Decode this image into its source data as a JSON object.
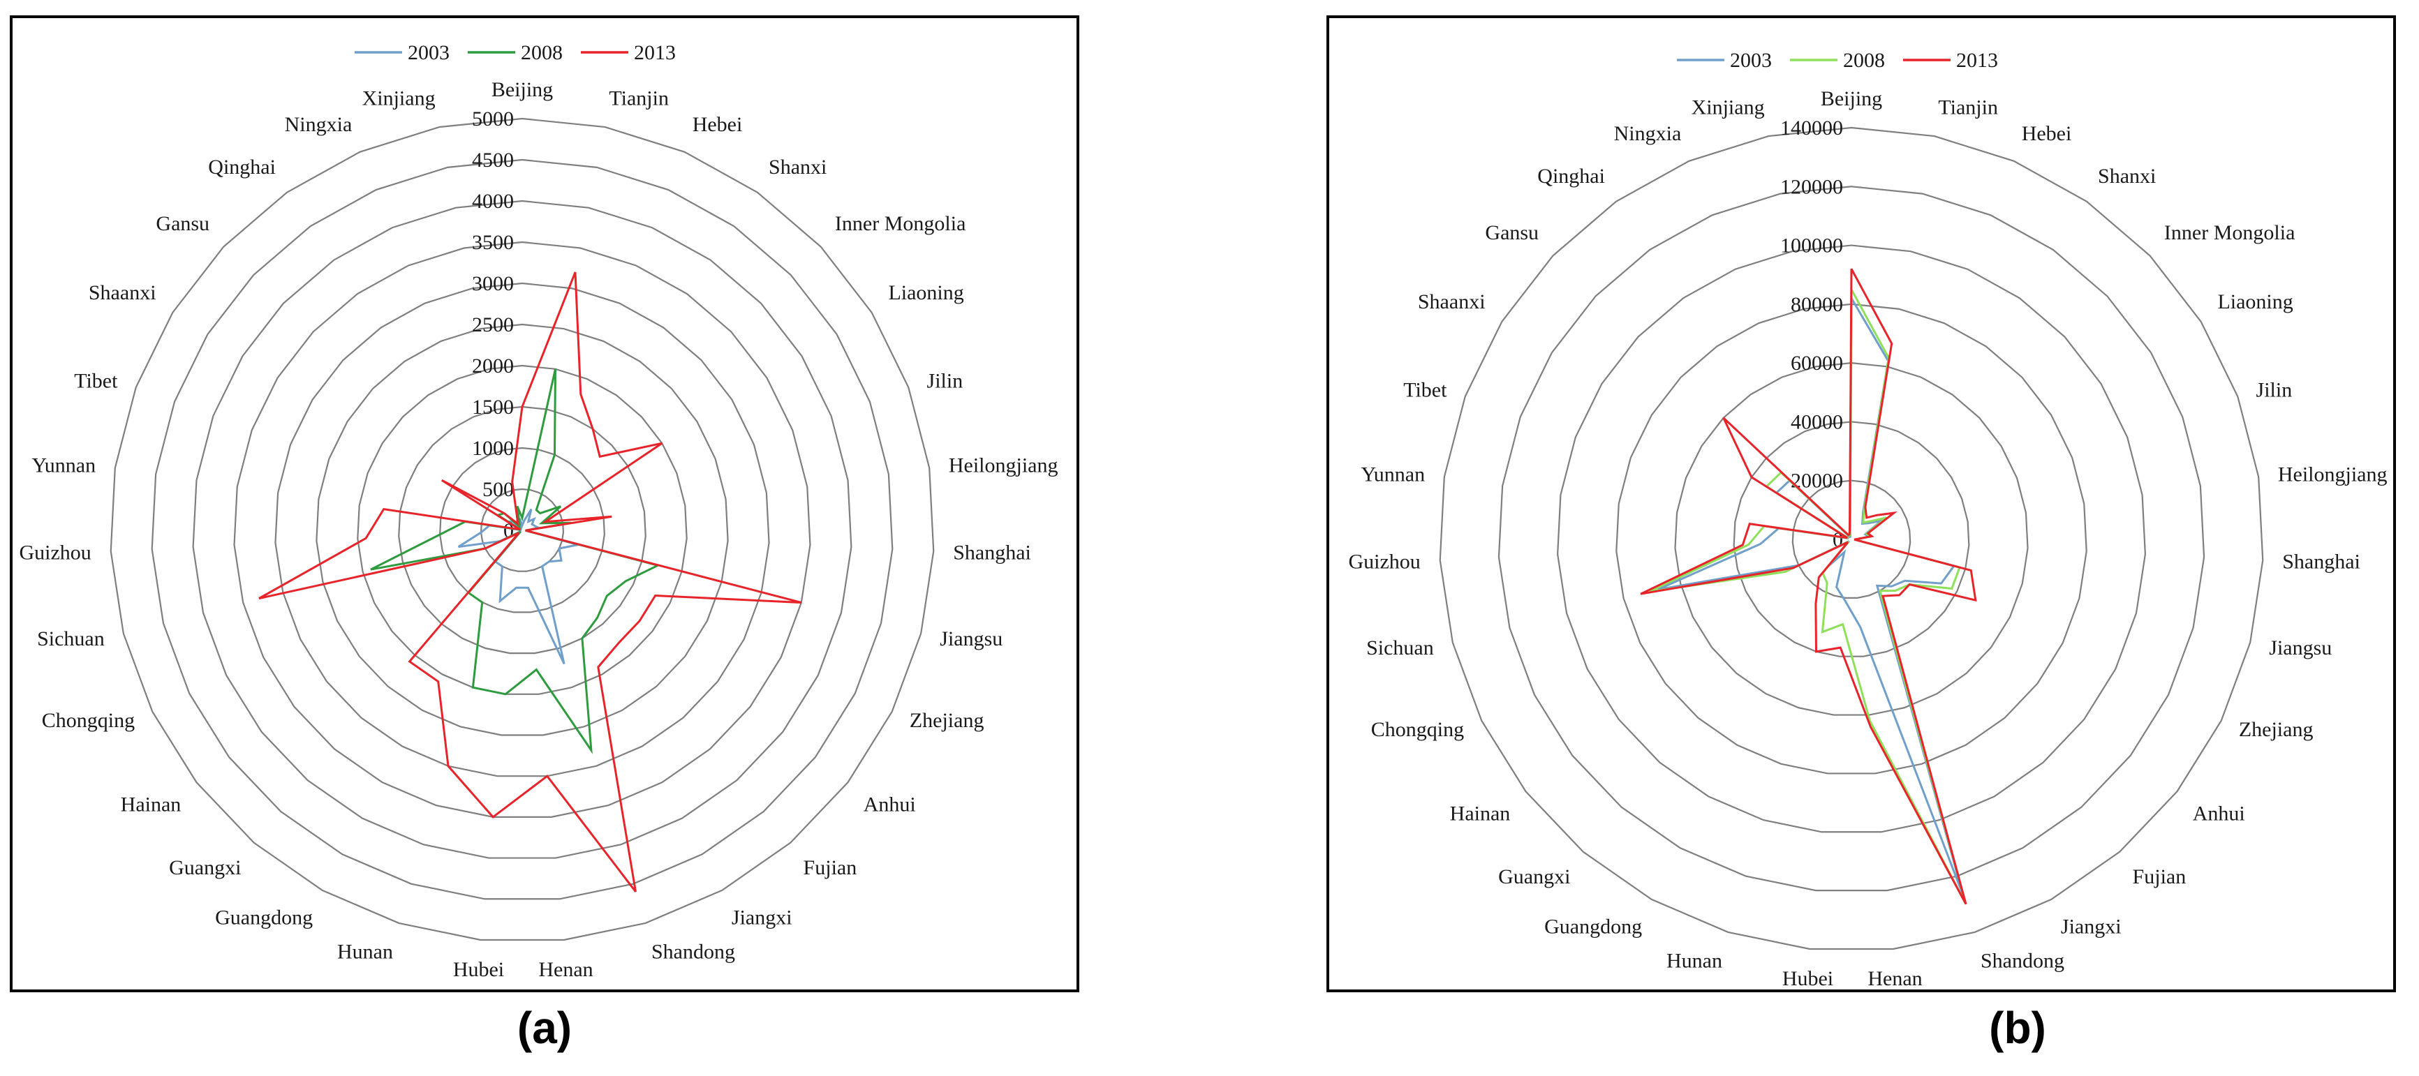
{
  "chart_data": [
    {
      "panel_label": "(a)",
      "type": "radar",
      "categories": [
        "Beijing",
        "Tianjin",
        "Hebei",
        "Shanxi",
        "Inner Mongolia",
        "Liaoning",
        "Jilin",
        "Heilongjiang",
        "Shanghai",
        "Jiangsu",
        "Zhejiang",
        "Anhui",
        "Fujian",
        "Jiangxi",
        "Shandong",
        "Henan",
        "Hubei",
        "Hunan",
        "Guangdong",
        "Guangxi",
        "Hainan",
        "Chongqing",
        "Sichuan",
        "Guizhou",
        "Yunnan",
        "Tibet",
        "Shaanxi",
        "Gansu",
        "Qinghai",
        "Ningxia",
        "Xinjiang"
      ],
      "rlim": [
        0,
        5000
      ],
      "ticks": [
        "0",
        "500",
        "1000",
        "1500",
        "2000",
        "2500",
        "3000",
        "3500",
        "4000",
        "4500",
        "5000"
      ],
      "tick_values": [
        0,
        500,
        1000,
        1500,
        2000,
        2500,
        3000,
        3500,
        4000,
        4500,
        5000
      ],
      "legend_position": "top",
      "grid": true,
      "series": [
        {
          "name": "2003",
          "color": "#6f9fca",
          "values": [
            60,
            120,
            280,
            130,
            200,
            140,
            160,
            200,
            40,
            700,
            500,
            600,
            500,
            500,
            1700,
            700,
            700,
            900,
            500,
            500,
            20,
            300,
            800,
            500,
            400,
            10,
            200,
            150,
            30,
            30,
            150
          ]
        },
        {
          "name": "2008",
          "color": "#2e9b3e",
          "values": [
            150,
            2000,
            1000,
            300,
            300,
            550,
            250,
            600,
            40,
            1700,
            1400,
            1300,
            1400,
            1500,
            2800,
            1700,
            2000,
            2000,
            1000,
            1000,
            30,
            500,
            1900,
            1000,
            700,
            20,
            350,
            300,
            60,
            80,
            300
          ]
        },
        {
          "name": "2013",
          "color": "#e8242b",
          "values": [
            1500,
            3200,
            1800,
            1500,
            1300,
            2000,
            300,
            1100,
            40,
            3500,
            1800,
            1800,
            1800,
            1900,
            4600,
            3000,
            3500,
            3000,
            2100,
            2100,
            50,
            500,
            3300,
            1900,
            1700,
            30,
            1150,
            300,
            100,
            150,
            600
          ]
        }
      ]
    },
    {
      "panel_label": "(b)",
      "type": "radar",
      "categories": [
        "Beijing",
        "Tianjin",
        "Hebei",
        "Shanxi",
        "Inner Mongolia",
        "Liaoning",
        "Jilin",
        "Heilongjiang",
        "Shanghai",
        "Jiangsu",
        "Zhejiang",
        "Anhui",
        "Fujian",
        "Jiangxi",
        "Shandong",
        "Henan",
        "Hubei",
        "Hunan",
        "Guangdong",
        "Guangxi",
        "Hainan",
        "Chongqing",
        "Sichuan",
        "Guizhou",
        "Yunnan",
        "Tibet",
        "Shaanxi",
        "Gansu",
        "Qinghai",
        "Ningxia",
        "Xinjiang"
      ],
      "rlim": [
        0,
        140000
      ],
      "ticks": [
        "0",
        "20000",
        "40000",
        "60000",
        "80000",
        "100000",
        "120000",
        "140000"
      ],
      "tick_values": [
        0,
        20000,
        40000,
        60000,
        80000,
        100000,
        120000,
        140000
      ],
      "legend_position": "top",
      "grid": true,
      "series": [
        {
          "name": "2003",
          "color": "#6f9fca",
          "values": [
            82000,
            62000,
            10000,
            6500,
            8000,
            12000,
            5000,
            6000,
            1000,
            36000,
            34000,
            23000,
            21000,
            18000,
            127000,
            30000,
            21000,
            17000,
            5000,
            12000,
            1000,
            20000,
            68000,
            31000,
            25000,
            1000,
            30000,
            29000,
            1000,
            1000,
            2000
          ]
        },
        {
          "name": "2008",
          "color": "#8ee05a",
          "values": [
            85000,
            63000,
            11000,
            7000,
            9000,
            14000,
            5500,
            6500,
            1000,
            38000,
            38000,
            25000,
            23000,
            20000,
            130000,
            62000,
            29000,
            33000,
            17000,
            15000,
            1200,
            25000,
            71000,
            35000,
            30000,
            1200,
            34000,
            33000,
            1500,
            1500,
            2500
          ]
        },
        {
          "name": "2013",
          "color": "#e8242b",
          "values": [
            92000,
            68000,
            12000,
            9000,
            12000,
            17000,
            6000,
            7000,
            1000,
            42000,
            47000,
            25000,
            25000,
            22000,
            130000,
            64000,
            37000,
            40000,
            25000,
            17000,
            1500,
            22000,
            74000,
            37000,
            35000,
            1500,
            40000,
            60000,
            1800,
            1800,
            3000
          ]
        }
      ]
    }
  ]
}
